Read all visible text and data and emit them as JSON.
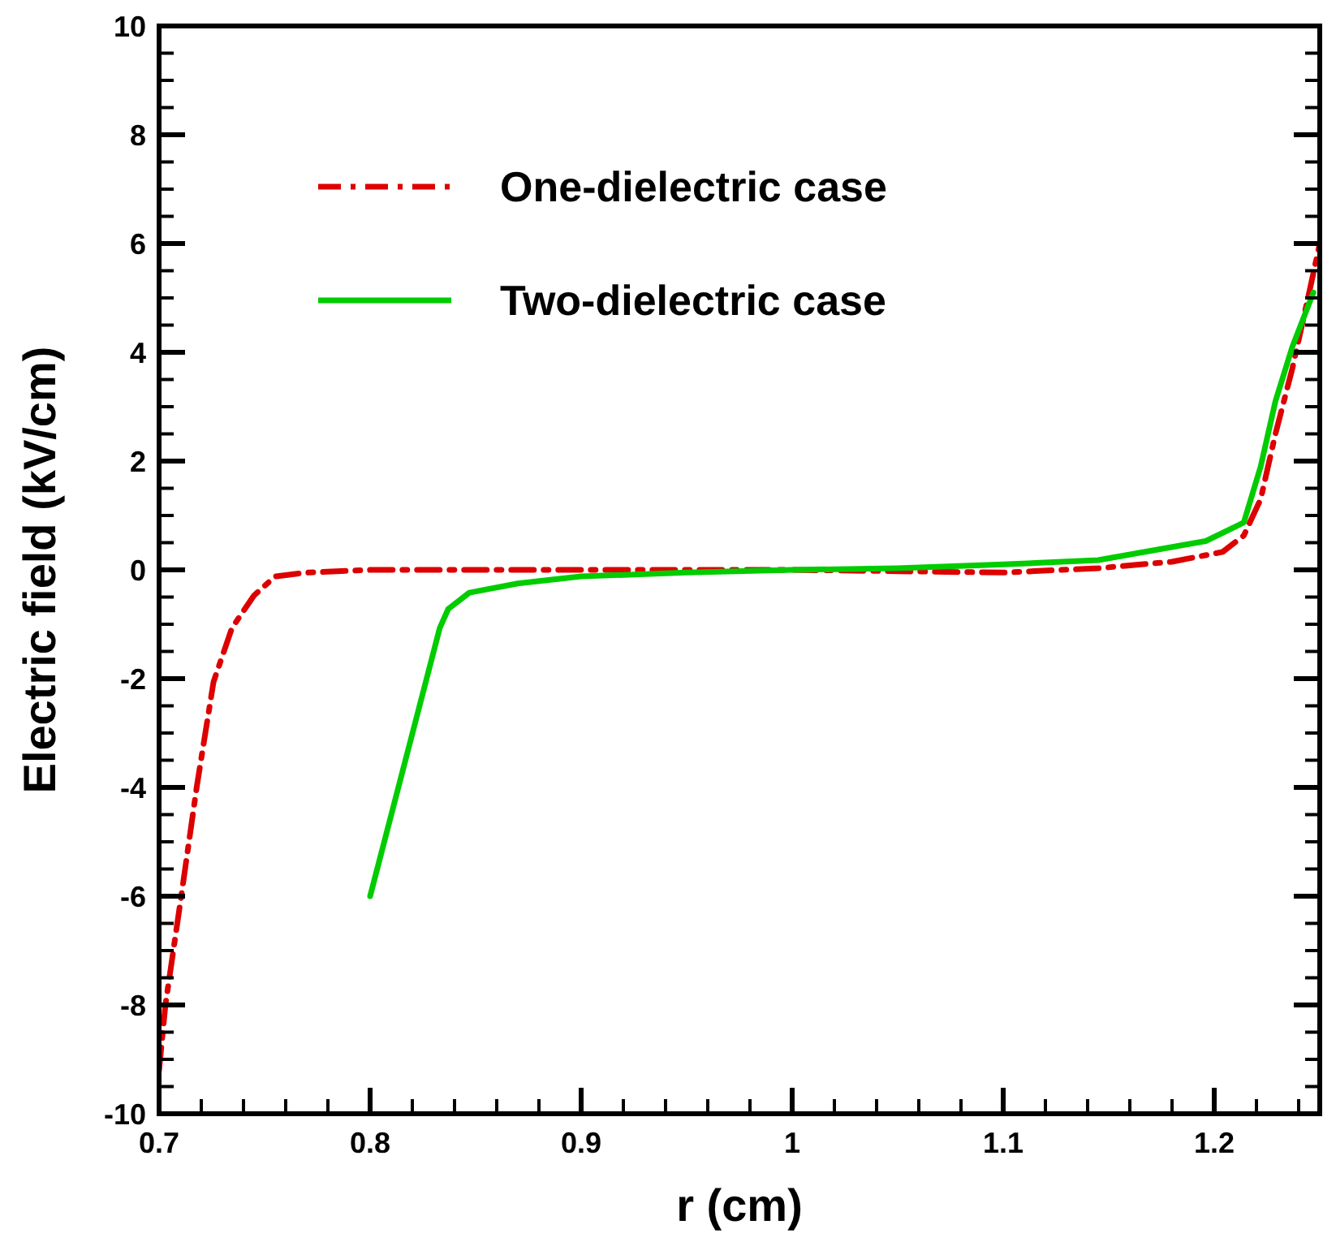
{
  "chart_data": {
    "type": "line",
    "xlabel": "r (cm)",
    "ylabel": "Electric field (kV/cm)",
    "xlim": [
      0.7,
      1.25
    ],
    "ylim": [
      -10,
      10
    ],
    "xticks": [
      0.7,
      {
        "value": 0.72,
        "label": null
      },
      {
        "value": 0.74,
        "label": null
      },
      {
        "value": 0.76,
        "label": null
      },
      {
        "value": 0.78,
        "label": null
      },
      0.8,
      {
        "value": 0.82,
        "label": null
      },
      {
        "value": 0.84,
        "label": null
      },
      {
        "value": 0.86,
        "label": null
      },
      {
        "value": 0.88,
        "label": null
      },
      0.9,
      {
        "value": 0.92,
        "label": null
      },
      {
        "value": 0.94,
        "label": null
      },
      {
        "value": 0.96,
        "label": null
      },
      {
        "value": 0.98,
        "label": null
      },
      1,
      {
        "value": 1.02,
        "label": null
      },
      {
        "value": 1.04,
        "label": null
      },
      {
        "value": 1.06,
        "label": null
      },
      {
        "value": 1.08,
        "label": null
      },
      1.1,
      {
        "value": 1.12,
        "label": null
      },
      {
        "value": 1.14,
        "label": null
      },
      {
        "value": 1.16,
        "label": null
      },
      {
        "value": 1.18,
        "label": null
      },
      1.2,
      {
        "value": 1.22,
        "label": null
      },
      {
        "value": 1.24,
        "label": null
      }
    ],
    "yticks": [
      -10,
      {
        "value": -9.5,
        "label": null
      },
      {
        "value": -9,
        "label": null
      },
      {
        "value": -8.5,
        "label": null
      },
      -8,
      {
        "value": -7.5,
        "label": null
      },
      {
        "value": -7,
        "label": null
      },
      {
        "value": -6.5,
        "label": null
      },
      -6,
      {
        "value": -5.5,
        "label": null
      },
      {
        "value": -5,
        "label": null
      },
      {
        "value": -4.5,
        "label": null
      },
      -4,
      {
        "value": -3.5,
        "label": null
      },
      {
        "value": -3,
        "label": null
      },
      {
        "value": -2.5,
        "label": null
      },
      -2,
      {
        "value": -1.5,
        "label": null
      },
      {
        "value": -1,
        "label": null
      },
      {
        "value": -0.5,
        "label": null
      },
      0,
      {
        "value": 0.5,
        "label": null
      },
      {
        "value": 1,
        "label": null
      },
      {
        "value": 1.5,
        "label": null
      },
      2,
      {
        "value": 2.5,
        "label": null
      },
      {
        "value": 3,
        "label": null
      },
      {
        "value": 3.5,
        "label": null
      },
      4,
      {
        "value": 4.5,
        "label": null
      },
      {
        "value": 5,
        "label": null
      },
      {
        "value": 5.5,
        "label": null
      },
      6,
      {
        "value": 6.5,
        "label": null
      },
      {
        "value": 7,
        "label": null
      },
      {
        "value": 7.5,
        "label": null
      },
      8,
      {
        "value": 8.5,
        "label": null
      },
      {
        "value": 9,
        "label": null
      },
      {
        "value": 9.5,
        "label": null
      },
      10
    ],
    "grid": false,
    "legend": "top left",
    "marker": "none",
    "series": [
      {
        "name": "One-dielectric case",
        "color": "#dd0000",
        "line_style": "dashed",
        "x": [
          0.7,
          0.703,
          0.7105,
          0.718,
          0.7258,
          0.7345,
          0.745,
          0.755,
          0.77,
          0.8,
          0.9,
          1.0,
          1.1,
          1.145,
          1.18,
          1.204,
          1.214,
          1.222,
          1.229,
          1.237,
          1.245,
          1.25
        ],
        "values": [
          -9.2,
          -8.0,
          -6.0,
          -3.95,
          -2.06,
          -1.07,
          -0.47,
          -0.12,
          -0.05,
          0,
          0,
          0,
          -0.05,
          0.03,
          0.15,
          0.33,
          0.63,
          1.3,
          2.5,
          3.7,
          5.1,
          6.0
        ]
      },
      {
        "name": "Two-dielectric case",
        "color": "#00cc00",
        "line_style": "solid",
        "x": [
          0.8,
          0.833,
          0.837,
          0.847,
          0.87,
          0.9,
          0.95,
          1.0,
          1.05,
          1.1,
          1.145,
          1.196,
          1.214,
          1.222,
          1.229,
          1.237,
          1.247
        ],
        "values": [
          -6.0,
          -1.07,
          -0.72,
          -0.42,
          -0.25,
          -0.12,
          -0.05,
          0,
          0.03,
          0.1,
          0.18,
          0.53,
          0.87,
          1.9,
          3.1,
          4.1,
          5.1
        ]
      }
    ]
  }
}
